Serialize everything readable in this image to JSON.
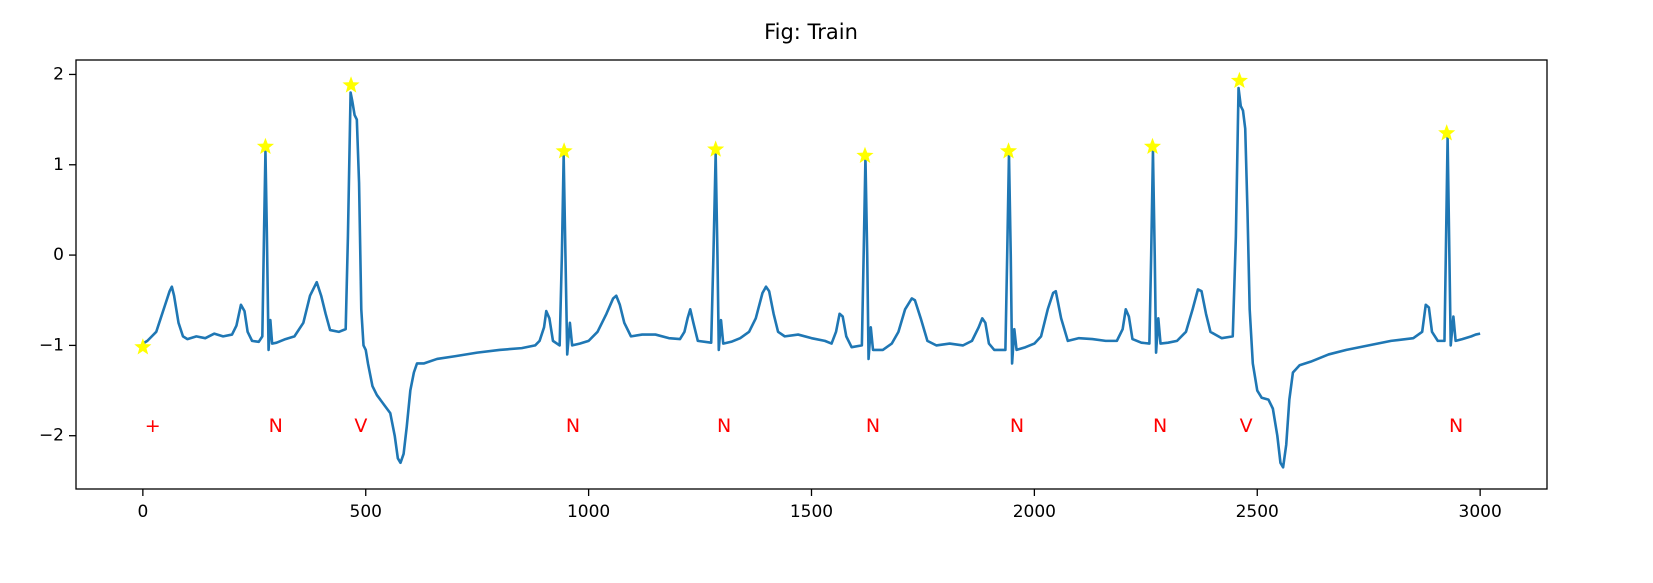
{
  "chart_data": {
    "type": "line",
    "title": "Fig: Train",
    "x": [
      0,
      10,
      20,
      30,
      40,
      50,
      60,
      65,
      70,
      80,
      90,
      100,
      120,
      140,
      160,
      180,
      200,
      210,
      220,
      228,
      235,
      245,
      260,
      268,
      272,
      275,
      278,
      282,
      286,
      290,
      300,
      320,
      340,
      360,
      375,
      385,
      390,
      400,
      410,
      420,
      440,
      455,
      460,
      466,
      470,
      475,
      480,
      485,
      490,
      495,
      500,
      505,
      515,
      525,
      540,
      555,
      565,
      572,
      578,
      585,
      592,
      600,
      608,
      615,
      630,
      660,
      700,
      750,
      800,
      850,
      880,
      890,
      900,
      905,
      912,
      920,
      935,
      940,
      944,
      948,
      952,
      958,
      963,
      980,
      1000,
      1020,
      1040,
      1055,
      1062,
      1070,
      1080,
      1095,
      1120,
      1150,
      1180,
      1205,
      1215,
      1222,
      1228,
      1235,
      1245,
      1275,
      1280,
      1285,
      1289,
      1292,
      1297,
      1302,
      1320,
      1340,
      1360,
      1375,
      1390,
      1398,
      1405,
      1415,
      1425,
      1440,
      1470,
      1500,
      1530,
      1545,
      1555,
      1563,
      1570,
      1578,
      1590,
      1613,
      1617,
      1621,
      1625,
      1628,
      1633,
      1638,
      1660,
      1680,
      1695,
      1710,
      1725,
      1732,
      1745,
      1760,
      1780,
      1810,
      1840,
      1860,
      1875,
      1883,
      1890,
      1898,
      1910,
      1935,
      1939,
      1943,
      1947,
      1950,
      1955,
      1960,
      1980,
      2000,
      2015,
      2030,
      2042,
      2048,
      2060,
      2075,
      2100,
      2130,
      2160,
      2185,
      2198,
      2205,
      2212,
      2220,
      2240,
      2258,
      2262,
      2266,
      2270,
      2273,
      2278,
      2283,
      2300,
      2320,
      2340,
      2355,
      2367,
      2375,
      2385,
      2395,
      2420,
      2445,
      2452,
      2458,
      2463,
      2468,
      2473,
      2478,
      2483,
      2490,
      2500,
      2510,
      2525,
      2535,
      2545,
      2552,
      2558,
      2565,
      2572,
      2580,
      2595,
      2620,
      2660,
      2700,
      2750,
      2800,
      2850,
      2870,
      2878,
      2885,
      2892,
      2905,
      2920,
      2923,
      2927,
      2931,
      2934,
      2940,
      2945,
      2960,
      2980,
      2990,
      3000
    ],
    "series": [
      {
        "color": "#1f77b4",
        "values": [
          -0.98,
          -0.95,
          -0.9,
          -0.85,
          -0.7,
          -0.55,
          -0.4,
          -0.35,
          -0.45,
          -0.75,
          -0.9,
          -0.93,
          -0.9,
          -0.92,
          -0.87,
          -0.9,
          -0.88,
          -0.78,
          -0.55,
          -0.62,
          -0.85,
          -0.95,
          -0.96,
          -0.9,
          0.3,
          1.15,
          0.3,
          -1.05,
          -0.72,
          -0.98,
          -0.97,
          -0.93,
          -0.9,
          -0.75,
          -0.45,
          -0.35,
          -0.3,
          -0.45,
          -0.65,
          -0.83,
          -0.85,
          -0.82,
          0.2,
          1.8,
          1.7,
          1.55,
          1.5,
          0.8,
          -0.6,
          -1.0,
          -1.05,
          -1.2,
          -1.45,
          -1.55,
          -1.65,
          -1.75,
          -2.0,
          -2.25,
          -2.3,
          -2.2,
          -1.9,
          -1.5,
          -1.3,
          -1.2,
          -1.2,
          -1.15,
          -1.12,
          -1.08,
          -1.05,
          -1.03,
          -1.0,
          -0.95,
          -0.8,
          -0.62,
          -0.7,
          -0.95,
          -1.0,
          0.0,
          1.1,
          0.0,
          -1.1,
          -0.75,
          -1.0,
          -0.98,
          -0.95,
          -0.85,
          -0.65,
          -0.48,
          -0.45,
          -0.55,
          -0.75,
          -0.9,
          -0.88,
          -0.88,
          -0.92,
          -0.93,
          -0.85,
          -0.7,
          -0.6,
          -0.75,
          -0.95,
          -0.97,
          0.0,
          1.12,
          0.0,
          -1.05,
          -0.72,
          -0.98,
          -0.96,
          -0.92,
          -0.85,
          -0.7,
          -0.42,
          -0.35,
          -0.4,
          -0.65,
          -0.85,
          -0.9,
          -0.88,
          -0.92,
          -0.95,
          -0.98,
          -0.85,
          -0.65,
          -0.68,
          -0.9,
          -1.02,
          -1.0,
          0.0,
          1.08,
          0.0,
          -1.15,
          -0.8,
          -1.05,
          -1.05,
          -0.98,
          -0.85,
          -0.6,
          -0.48,
          -0.5,
          -0.7,
          -0.95,
          -1.0,
          -0.98,
          -1.0,
          -0.95,
          -0.8,
          -0.7,
          -0.75,
          -0.98,
          -1.05,
          -1.05,
          0.0,
          1.12,
          0.0,
          -1.2,
          -0.82,
          -1.05,
          -1.02,
          -0.98,
          -0.9,
          -0.6,
          -0.42,
          -0.4,
          -0.7,
          -0.95,
          -0.92,
          -0.93,
          -0.95,
          -0.95,
          -0.82,
          -0.6,
          -0.68,
          -0.93,
          -0.97,
          -0.98,
          0.0,
          1.15,
          0.0,
          -1.08,
          -0.7,
          -0.98,
          -0.97,
          -0.95,
          -0.85,
          -0.6,
          -0.38,
          -0.4,
          -0.65,
          -0.85,
          -0.92,
          -0.9,
          0.2,
          1.85,
          1.65,
          1.6,
          1.4,
          0.5,
          -0.6,
          -1.2,
          -1.5,
          -1.58,
          -1.6,
          -1.7,
          -2.0,
          -2.3,
          -2.35,
          -2.1,
          -1.6,
          -1.3,
          -1.22,
          -1.18,
          -1.1,
          -1.05,
          -1.0,
          -0.95,
          -0.92,
          -0.85,
          -0.55,
          -0.58,
          -0.85,
          -0.95,
          -0.95,
          0.0,
          1.3,
          0.0,
          -1.0,
          -0.68,
          -0.95,
          -0.93,
          -0.9,
          -0.88,
          -0.87
        ]
      }
    ],
    "markers": {
      "color": "#ffff00",
      "x": [
        0,
        275,
        467,
        945,
        1285,
        1620,
        1942,
        2265,
        2460,
        2925
      ],
      "values": [
        -1.02,
        1.2,
        1.88,
        1.15,
        1.17,
        1.1,
        1.15,
        1.2,
        1.93,
        1.35
      ]
    },
    "annotations": [
      {
        "text": "+",
        "x": 22,
        "y": -1.9,
        "color": "#ff0000"
      },
      {
        "text": "N",
        "x": 298,
        "y": -1.9,
        "color": "#ff0000"
      },
      {
        "text": "V",
        "x": 489,
        "y": -1.9,
        "color": "#ff0000"
      },
      {
        "text": "N",
        "x": 965,
        "y": -1.9,
        "color": "#ff0000"
      },
      {
        "text": "N",
        "x": 1304,
        "y": -1.9,
        "color": "#ff0000"
      },
      {
        "text": "N",
        "x": 1638,
        "y": -1.9,
        "color": "#ff0000"
      },
      {
        "text": "N",
        "x": 1961,
        "y": -1.9,
        "color": "#ff0000"
      },
      {
        "text": "N",
        "x": 2282,
        "y": -1.9,
        "color": "#ff0000"
      },
      {
        "text": "V",
        "x": 2475,
        "y": -1.9,
        "color": "#ff0000"
      },
      {
        "text": "N",
        "x": 2946,
        "y": -1.9,
        "color": "#ff0000"
      }
    ],
    "xlim": [
      -150,
      3150
    ],
    "ylim": [
      -2.59,
      2.16
    ],
    "xticks": [
      0,
      500,
      1000,
      1500,
      2000,
      2500,
      3000
    ],
    "yticks": [
      {
        "value": -2,
        "label": "−2"
      },
      {
        "value": -1,
        "label": "−1"
      },
      0,
      1,
      2
    ]
  }
}
